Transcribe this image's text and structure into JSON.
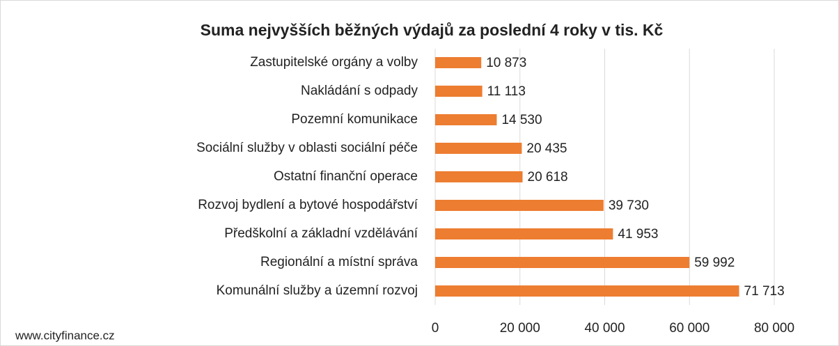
{
  "chart_data": {
    "type": "bar",
    "orientation": "horizontal",
    "title": "Suma nejvyšších běžných výdajů za poslední 4 roky v tis. Kč",
    "categories": [
      "Zastupitelské orgány a volby",
      "Nakládání s odpady",
      "Pozemní komunikace",
      "Sociální služby v oblasti sociální péče",
      "Ostatní finanční operace",
      "Rozvoj bydlení a bytové hospodářství",
      "Předškolní a základní vzdělávání",
      "Regionální a místní správa",
      "Komunální služby a územní rozvoj"
    ],
    "values": [
      10873,
      11113,
      14530,
      20435,
      20618,
      39730,
      41953,
      59992,
      71713
    ],
    "value_labels": [
      "10 873",
      "11 113",
      "14 530",
      "20 435",
      "20 618",
      "39 730",
      "41 953",
      "59 992",
      "71 713"
    ],
    "color": "#ed7d31",
    "xlim": [
      0,
      80000
    ],
    "xticks": [
      0,
      {
        "value": 20000,
        "label": "20 000"
      },
      {
        "value": 40000,
        "label": "40 000"
      },
      {
        "value": 60000,
        "label": "60 000"
      },
      {
        "value": 80000,
        "label": "80 000"
      }
    ],
    "grid": true,
    "source": "www.cityfinance.cz"
  }
}
